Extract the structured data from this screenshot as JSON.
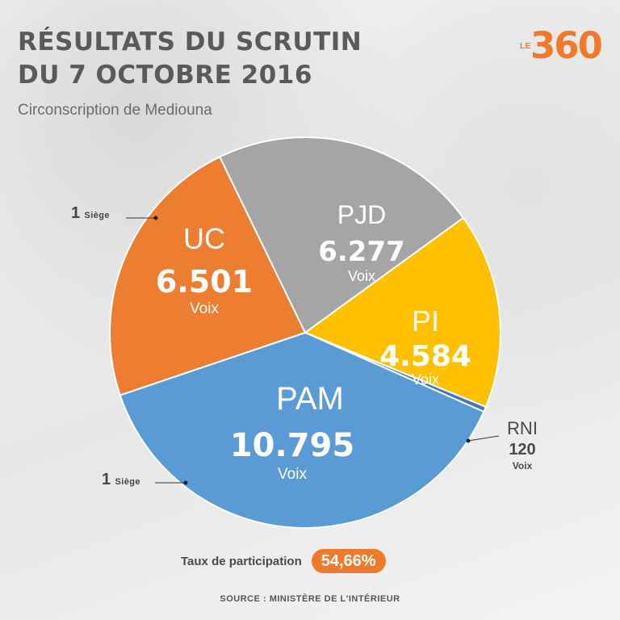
{
  "header": {
    "title_line1": "RÉSULTATS DU SCRUTIN",
    "title_line2": "DU 7 OCTOBRE 2016",
    "subtitle": "Circonscription de Mediouna"
  },
  "logo": {
    "prefix": "LE",
    "number": "360"
  },
  "chart_data": {
    "type": "pie",
    "unit_label": "Voix",
    "series": [
      {
        "name": "PAM",
        "value_label": "10.795",
        "value": 10795,
        "color": "#5b9bd5",
        "seats": "1",
        "seat_label": "Siège"
      },
      {
        "name": "UC",
        "value_label": "6.501",
        "value": 6501,
        "color": "#ed7d31",
        "seats": "1",
        "seat_label": "Siège"
      },
      {
        "name": "PJD",
        "value_label": "6.277",
        "value": 6277,
        "color": "#a5a5a5"
      },
      {
        "name": "PI",
        "value_label": "4.584",
        "value": 4584,
        "color": "#ffc000"
      },
      {
        "name": "RNI",
        "value_label": "120",
        "value": 120,
        "color": "#4472c4"
      }
    ]
  },
  "footer": {
    "turnout_label": "Taux de participation",
    "turnout_value": "54,66%",
    "source": "SOURCE : MINISTÈRE DE L'INTÉRIEUR"
  }
}
